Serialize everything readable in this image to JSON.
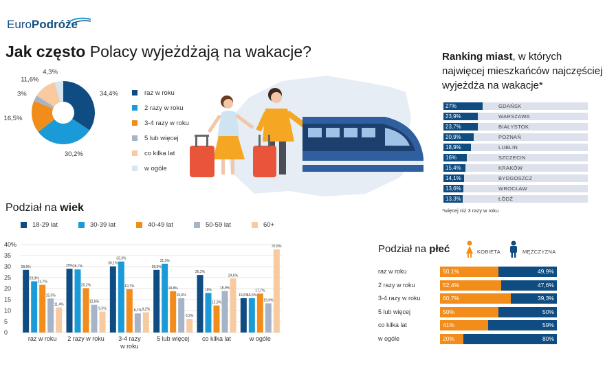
{
  "brand": {
    "logo_light": "Euro",
    "logo_bold": "Podróże"
  },
  "header": {
    "title_bold": "Jak często",
    "title_rest": " Polacy wyjeżdżają na wakacje?"
  },
  "colors": {
    "navy": "#0f4c81",
    "cyan": "#1a9bd7",
    "orange": "#f28c1a",
    "gray_blue": "#a7b4c7",
    "peach": "#f8caa0",
    "light_blue": "#d3e6f2",
    "rank_bg": "#dde1ec"
  },
  "icons": [
    "swoosh-logo-icon",
    "woman-traveler-icon",
    "man-traveler-icon",
    "suitcase-icon",
    "train-icon",
    "poland-map-icon",
    "woman-icon",
    "man-icon"
  ],
  "chart_data": [
    {
      "type": "pie",
      "title": "Jak często Polacy wyjeżdżają na wakacje?",
      "categories": [
        "raz w roku",
        "2 razy w roku",
        "3-4 razy w roku",
        "5 lub więcej",
        "co kilka lat",
        "w ogóle"
      ],
      "values": [
        34.4,
        30.2,
        16.5,
        3,
        11.6,
        4.3
      ],
      "value_labels": [
        "34,4%",
        "30,2%",
        "16,5%",
        "3%",
        "11,6%",
        "4,3%"
      ],
      "colors": [
        "#0f4c81",
        "#1a9bd7",
        "#f28c1a",
        "#a7b4c7",
        "#f8caa0",
        "#d3e6f2"
      ],
      "legend_position": "right",
      "donut": true
    },
    {
      "type": "bar",
      "title_light": "Ranking miast",
      "title_rest": ", w których najwięcej mieszkańców najczęściej wyjeżdża na wakacje*",
      "orientation": "horizontal",
      "categories": [
        "GDAŃSK",
        "WARSZAWA",
        "BIAŁYSTOK",
        "POZNAŃ",
        "LUBLIN",
        "SZCZECIN",
        "KRAKÓW",
        "BYDGOSZCZ",
        "WROCŁAW",
        "ŁÓDŹ"
      ],
      "values": [
        27,
        23.9,
        23.7,
        20.9,
        18.9,
        16,
        15.4,
        14.1,
        13.6,
        13.3
      ],
      "value_labels": [
        "27%",
        "23,9%",
        "23,7%",
        "20,9%",
        "18,9%",
        "16%",
        "15,4%",
        "14,1%",
        "13,6%",
        "13,3%"
      ],
      "xlim": [
        0,
        100
      ],
      "note": "*więcej niż 3 razy w roku"
    },
    {
      "type": "bar",
      "title_light": "Podział na ",
      "title_bold": "wiek",
      "categories": [
        "raz w roku",
        "2 razy w roku",
        "3-4 razy w roku",
        "5 lub więcej",
        "co kilka lat",
        "w ogóle"
      ],
      "category_lines": [
        [
          "raz w roku"
        ],
        [
          "2 razy w roku"
        ],
        [
          "3-4 razy",
          "w roku"
        ],
        [
          "5 lub więcej"
        ],
        [
          "co kilka lat"
        ],
        [
          "w ogóle"
        ]
      ],
      "series": [
        {
          "name": "18-29 lat",
          "color": "#0f4c81",
          "values": [
            28.5,
            29,
            30.1,
            28.5,
            26.2,
            15.6
          ],
          "labels": [
            "28,5%",
            "29%",
            "30,1%",
            "28,5%",
            "26,2%",
            "15,6%"
          ]
        },
        {
          "name": "30-39 lat",
          "color": "#1a9bd7",
          "values": [
            23.3,
            28.7,
            32.3,
            31.3,
            18,
            15.6
          ],
          "labels": [
            "23,3%",
            "28,7%",
            "32,3%",
            "31,3%",
            "18%",
            "15,6%"
          ]
        },
        {
          "name": "40-49 lat",
          "color": "#f28c1a",
          "values": [
            21.7,
            20.2,
            19.7,
            18.8,
            12.3,
            17.7
          ],
          "labels": [
            "21,7%",
            "20,2%",
            "19,7%",
            "18,8%",
            "12,3%",
            "17,7%"
          ]
        },
        {
          "name": "50-59 lat",
          "color": "#a7b4c7",
          "values": [
            15.5,
            12.6,
            8.7,
            15.6,
            18.9,
            13.3
          ],
          "labels": [
            "15,5%",
            "12,6%",
            "8,7%",
            "15,6%",
            "18,9%",
            "13,3%"
          ]
        },
        {
          "name": "60+",
          "color": "#f8caa0",
          "values": [
            11.4,
            9.5,
            9.2,
            6.2,
            24.6,
            37.8
          ],
          "labels": [
            "11,4%",
            "9,5%",
            "9,2%",
            "6,2%",
            "24,6%",
            "37,8%"
          ]
        }
      ],
      "y_ticks": [
        "0",
        "5",
        "10",
        "15",
        "20",
        "25",
        "30",
        "35",
        "40%"
      ],
      "ylim": [
        0,
        40
      ],
      "grid": true,
      "legend_position": "top"
    },
    {
      "type": "bar",
      "stacked": true,
      "orientation": "horizontal",
      "title_light": "Podział na ",
      "title_bold": "płeć",
      "categories": [
        "raz w roku",
        "2 razy w roku",
        "3-4 razy w roku",
        "5 lub więcej",
        "co kilka lat",
        "w ogóle"
      ],
      "series": [
        {
          "name": "KOBIETA",
          "color": "#f28c1a",
          "values": [
            50.1,
            52.4,
            60.7,
            50,
            41,
            20
          ],
          "labels": [
            "50,1%",
            "52,4%",
            "60,7%",
            "50%",
            "41%",
            "20%"
          ]
        },
        {
          "name": "MĘŻCZYZNA",
          "color": "#0f4c81",
          "values": [
            49.9,
            47.6,
            39.3,
            50,
            59,
            80
          ],
          "labels": [
            "49,9%",
            "47,6%",
            "39,3%",
            "50%",
            "59%",
            "80%"
          ]
        }
      ],
      "xlim": [
        0,
        100
      ],
      "legend_position": "top"
    }
  ]
}
